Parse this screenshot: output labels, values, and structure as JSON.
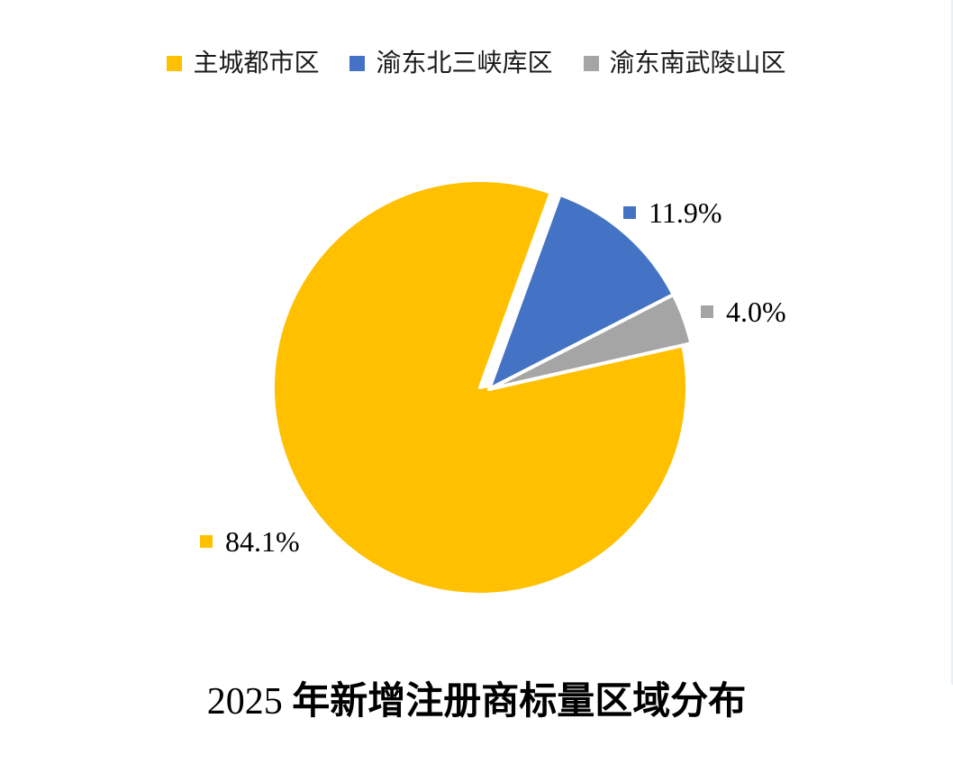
{
  "chart_data": {
    "type": "pie",
    "title_year": "2025",
    "title_text": "年新增注册商标量区域分布",
    "legend_position": "top",
    "categories": [
      "主城都市区",
      "渝东北三峡库区",
      "渝东南武陵山区"
    ],
    "values": [
      84.1,
      11.9,
      4.0
    ],
    "labels": [
      "84.1%",
      "11.9%",
      "4.0%"
    ],
    "colors": [
      "#FFC000",
      "#4472C4",
      "#A5A5A5"
    ],
    "exploded_slice": "主城都市区"
  }
}
